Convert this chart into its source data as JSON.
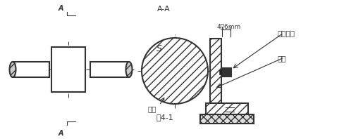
{
  "bg_color": "#ffffff",
  "line_color": "#333333",
  "fig_width": 4.89,
  "fig_height": 1.98,
  "dpi": 100,
  "label_aa": "A-A",
  "label_s": "S",
  "label_cigan": "磁钢",
  "label_tu41": "图4-1",
  "label_4_6mm": "4－6mm",
  "label_hall": "霍尔电路",
  "label_zhijia": "支架",
  "label_a_top": "A",
  "label_a_bot": "A"
}
